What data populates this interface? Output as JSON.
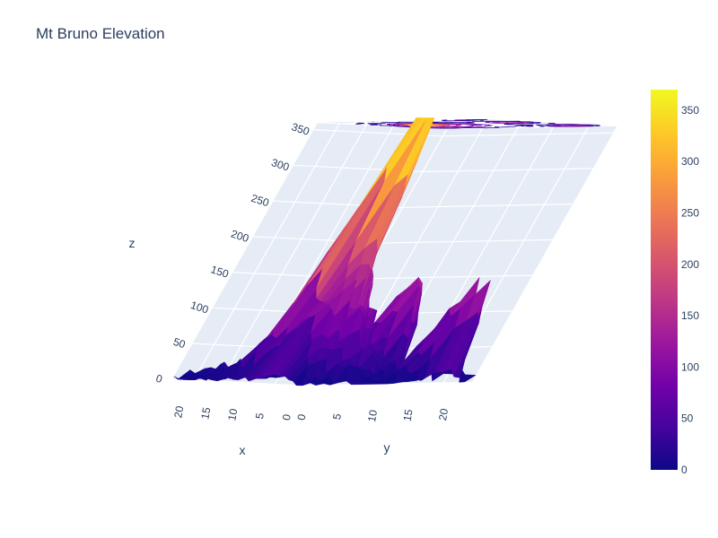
{
  "chart_data": {
    "type": "surface",
    "title": "Mt Bruno Elevation",
    "axes": {
      "x": {
        "label": "x",
        "ticks": [
          "20",
          "15",
          "10",
          "5",
          "0"
        ]
      },
      "y": {
        "label": "y",
        "ticks": [
          "0",
          "5",
          "10",
          "15",
          "20"
        ]
      },
      "z": {
        "label": "z",
        "ticks": [
          "0",
          "50",
          "100",
          "150",
          "200",
          "250",
          "300",
          "350"
        ]
      }
    },
    "colorbar": {
      "min": 0,
      "max": 370,
      "ticks": [
        "0",
        "50",
        "100",
        "150",
        "200",
        "250",
        "300",
        "350"
      ]
    },
    "contours_projected_on_top": true,
    "grid": 25,
    "z_max": 370,
    "colorscale": [
      "#0d0887",
      "#46039f",
      "#7201a8",
      "#9c179e",
      "#bd3786",
      "#d8576b",
      "#ed7953",
      "#fb9f3a",
      "#fdca26",
      "#f0f921"
    ]
  }
}
